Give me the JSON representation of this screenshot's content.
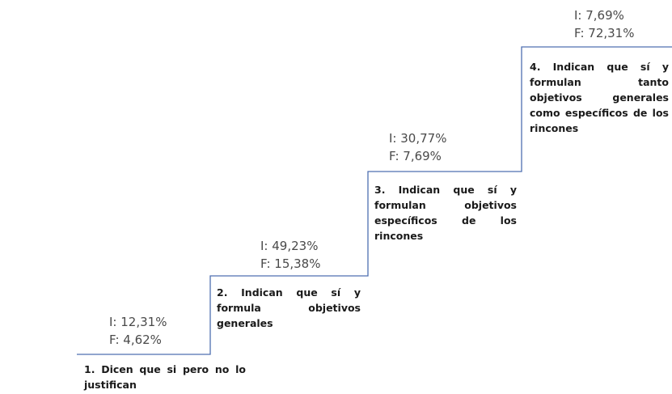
{
  "colors": {
    "stair_line": "#4f6fb0",
    "text": "#1a1a1a",
    "percent_text": "#4a4a4a",
    "background": "#ffffff"
  },
  "steps": [
    {
      "i_value": "I: 12,31%",
      "f_value": "F: 4,62%",
      "description": "1. Dicen que si pero no lo justifican"
    },
    {
      "i_value": "I: 49,23%",
      "f_value": "F: 15,38%",
      "description": "2. Indican que sí y formula objetivos generales"
    },
    {
      "i_value": "I: 30,77%",
      "f_value": "F: 7,69%",
      "description": "3. Indican que sí y formulan objetivos específicos de los rincones"
    },
    {
      "i_value": "I: 7,69%",
      "f_value": "F: 72,31%",
      "description": "4. Indican que sí y formulan tanto objetivos generales como específicos de los rincones"
    }
  ]
}
